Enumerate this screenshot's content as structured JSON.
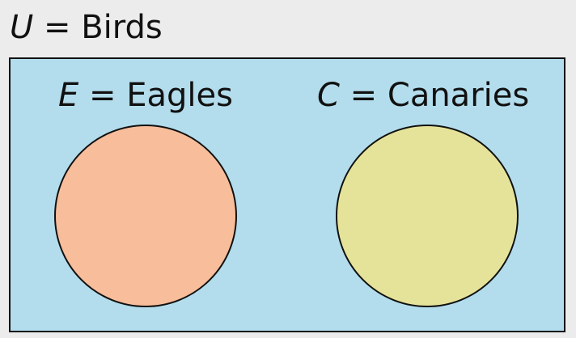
{
  "universe": {
    "symbol": "U",
    "equals": " = ",
    "name": "Birds"
  },
  "sets": [
    {
      "symbol": "E",
      "equals": " = ",
      "name": "Eagles"
    },
    {
      "symbol": "C",
      "equals": " = ",
      "name": "Canaries"
    }
  ],
  "colors": {
    "background": "#ececec",
    "universe_fill": "#b3ddec",
    "set_e_fill": "#f8bd9b",
    "set_c_fill": "#e5e39a",
    "stroke": "#111111"
  }
}
